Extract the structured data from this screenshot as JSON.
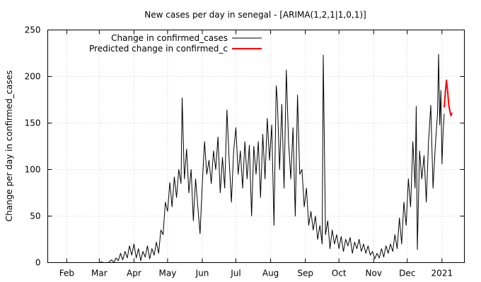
{
  "chart_data": {
    "type": "line",
    "title": "New cases per day in senegal -  [ARIMA(1,2,1|1,0,1)]",
    "xlabel": "",
    "ylabel": "Change per day in confirmed_cases",
    "ylim": [
      0,
      250
    ],
    "yticks": [
      0,
      50,
      100,
      150,
      200,
      250
    ],
    "xticks": [
      {
        "label": "Feb",
        "date": "2020-02-01"
      },
      {
        "label": "Mar",
        "date": "2020-03-01"
      },
      {
        "label": "Apr",
        "date": "2020-04-01"
      },
      {
        "label": "May",
        "date": "2020-05-01"
      },
      {
        "label": "Jun",
        "date": "2020-06-01"
      },
      {
        "label": "Jul",
        "date": "2020-07-01"
      },
      {
        "label": "Aug",
        "date": "2020-08-01"
      },
      {
        "label": "Sep",
        "date": "2020-09-01"
      },
      {
        "label": "Oct",
        "date": "2020-10-01"
      },
      {
        "label": "Nov",
        "date": "2020-11-01"
      },
      {
        "label": "Dec",
        "date": "2020-12-01"
      },
      {
        "label": "2021",
        "date": "2021-01-01"
      }
    ],
    "xlim": [
      "2020-01-15",
      "2021-01-21"
    ],
    "grid": true,
    "legend_position": "top-left",
    "series": [
      {
        "name": "Change in confirmed_cases",
        "color": "#000000",
        "points": [
          [
            "2020-03-02",
            1
          ],
          [
            "2020-03-05",
            0
          ],
          [
            "2020-03-09",
            0
          ],
          [
            "2020-03-12",
            3
          ],
          [
            "2020-03-14",
            0
          ],
          [
            "2020-03-16",
            5
          ],
          [
            "2020-03-18",
            2
          ],
          [
            "2020-03-20",
            10
          ],
          [
            "2020-03-22",
            3
          ],
          [
            "2020-03-24",
            12
          ],
          [
            "2020-03-26",
            5
          ],
          [
            "2020-03-28",
            18
          ],
          [
            "2020-03-30",
            8
          ],
          [
            "2020-04-01",
            20
          ],
          [
            "2020-04-03",
            5
          ],
          [
            "2020-04-05",
            15
          ],
          [
            "2020-04-07",
            2
          ],
          [
            "2020-04-09",
            12
          ],
          [
            "2020-04-11",
            6
          ],
          [
            "2020-04-13",
            18
          ],
          [
            "2020-04-15",
            4
          ],
          [
            "2020-04-17",
            15
          ],
          [
            "2020-04-19",
            8
          ],
          [
            "2020-04-21",
            22
          ],
          [
            "2020-04-23",
            10
          ],
          [
            "2020-04-25",
            35
          ],
          [
            "2020-04-27",
            30
          ],
          [
            "2020-04-29",
            65
          ],
          [
            "2020-05-01",
            55
          ],
          [
            "2020-05-03",
            86
          ],
          [
            "2020-05-05",
            60
          ],
          [
            "2020-05-07",
            92
          ],
          [
            "2020-05-09",
            70
          ],
          [
            "2020-05-11",
            100
          ],
          [
            "2020-05-13",
            85
          ],
          [
            "2020-05-14",
            177
          ],
          [
            "2020-05-16",
            90
          ],
          [
            "2020-05-18",
            122
          ],
          [
            "2020-05-20",
            75
          ],
          [
            "2020-05-22",
            100
          ],
          [
            "2020-05-24",
            45
          ],
          [
            "2020-05-26",
            90
          ],
          [
            "2020-05-28",
            60
          ],
          [
            "2020-05-30",
            31
          ],
          [
            "2020-06-01",
            85
          ],
          [
            "2020-06-03",
            130
          ],
          [
            "2020-06-05",
            95
          ],
          [
            "2020-06-07",
            110
          ],
          [
            "2020-06-09",
            85
          ],
          [
            "2020-06-11",
            120
          ],
          [
            "2020-06-13",
            100
          ],
          [
            "2020-06-15",
            135
          ],
          [
            "2020-06-17",
            75
          ],
          [
            "2020-06-19",
            113
          ],
          [
            "2020-06-21",
            80
          ],
          [
            "2020-06-23",
            164
          ],
          [
            "2020-06-25",
            110
          ],
          [
            "2020-06-27",
            65
          ],
          [
            "2020-06-29",
            120
          ],
          [
            "2020-07-01",
            145
          ],
          [
            "2020-07-03",
            95
          ],
          [
            "2020-07-05",
            120
          ],
          [
            "2020-07-07",
            80
          ],
          [
            "2020-07-09",
            130
          ],
          [
            "2020-07-11",
            90
          ],
          [
            "2020-07-13",
            126
          ],
          [
            "2020-07-15",
            50
          ],
          [
            "2020-07-17",
            125
          ],
          [
            "2020-07-19",
            95
          ],
          [
            "2020-07-21",
            130
          ],
          [
            "2020-07-23",
            70
          ],
          [
            "2020-07-25",
            138
          ],
          [
            "2020-07-27",
            90
          ],
          [
            "2020-07-29",
            155
          ],
          [
            "2020-07-31",
            110
          ],
          [
            "2020-08-02",
            148
          ],
          [
            "2020-08-04",
            40
          ],
          [
            "2020-08-06",
            190
          ],
          [
            "2020-08-07",
            175
          ],
          [
            "2020-08-09",
            100
          ],
          [
            "2020-08-11",
            170
          ],
          [
            "2020-08-13",
            80
          ],
          [
            "2020-08-15",
            207
          ],
          [
            "2020-08-17",
            130
          ],
          [
            "2020-08-19",
            90
          ],
          [
            "2020-08-21",
            145
          ],
          [
            "2020-08-23",
            50
          ],
          [
            "2020-08-25",
            180
          ],
          [
            "2020-08-27",
            95
          ],
          [
            "2020-08-29",
            100
          ],
          [
            "2020-08-31",
            60
          ],
          [
            "2020-09-02",
            80
          ],
          [
            "2020-09-04",
            40
          ],
          [
            "2020-09-06",
            55
          ],
          [
            "2020-09-08",
            35
          ],
          [
            "2020-09-10",
            50
          ],
          [
            "2020-09-12",
            25
          ],
          [
            "2020-09-14",
            40
          ],
          [
            "2020-09-16",
            20
          ],
          [
            "2020-09-17",
            223
          ],
          [
            "2020-09-19",
            30
          ],
          [
            "2020-09-21",
            45
          ],
          [
            "2020-09-23",
            15
          ],
          [
            "2020-09-25",
            35
          ],
          [
            "2020-09-27",
            20
          ],
          [
            "2020-09-29",
            30
          ],
          [
            "2020-10-01",
            15
          ],
          [
            "2020-10-03",
            28
          ],
          [
            "2020-10-05",
            12
          ],
          [
            "2020-10-07",
            25
          ],
          [
            "2020-10-09",
            18
          ],
          [
            "2020-10-11",
            27
          ],
          [
            "2020-10-13",
            10
          ],
          [
            "2020-10-15",
            22
          ],
          [
            "2020-10-17",
            15
          ],
          [
            "2020-10-19",
            25
          ],
          [
            "2020-10-21",
            12
          ],
          [
            "2020-10-23",
            20
          ],
          [
            "2020-10-25",
            10
          ],
          [
            "2020-10-27",
            18
          ],
          [
            "2020-10-29",
            8
          ],
          [
            "2020-10-31",
            12
          ],
          [
            "2020-11-02",
            4
          ],
          [
            "2020-11-04",
            10
          ],
          [
            "2020-11-06",
            5
          ],
          [
            "2020-11-08",
            15
          ],
          [
            "2020-11-10",
            6
          ],
          [
            "2020-11-12",
            18
          ],
          [
            "2020-11-14",
            10
          ],
          [
            "2020-11-16",
            20
          ],
          [
            "2020-11-18",
            12
          ],
          [
            "2020-11-20",
            30
          ],
          [
            "2020-11-22",
            15
          ],
          [
            "2020-11-24",
            48
          ],
          [
            "2020-11-26",
            20
          ],
          [
            "2020-11-28",
            65
          ],
          [
            "2020-11-30",
            40
          ],
          [
            "2020-12-02",
            90
          ],
          [
            "2020-12-04",
            60
          ],
          [
            "2020-12-06",
            130
          ],
          [
            "2020-12-08",
            80
          ],
          [
            "2020-12-09",
            168
          ],
          [
            "2020-12-10",
            14
          ],
          [
            "2020-12-12",
            120
          ],
          [
            "2020-12-14",
            90
          ],
          [
            "2020-12-16",
            115
          ],
          [
            "2020-12-18",
            65
          ],
          [
            "2020-12-20",
            130
          ],
          [
            "2020-12-22",
            169
          ],
          [
            "2020-12-24",
            80
          ],
          [
            "2020-12-26",
            124
          ],
          [
            "2020-12-28",
            160
          ],
          [
            "2020-12-29",
            224
          ],
          [
            "2020-12-30",
            148
          ],
          [
            "2020-12-31",
            185
          ],
          [
            "2021-01-01",
            106
          ],
          [
            "2021-01-02",
            140
          ],
          [
            "2021-01-03",
            160
          ]
        ]
      },
      {
        "name": "Predicted change in confirmed_c",
        "color": "#ff0000",
        "points": [
          [
            "2021-01-03",
            167
          ],
          [
            "2021-01-04",
            183
          ],
          [
            "2021-01-05",
            196
          ],
          [
            "2021-01-06",
            185
          ],
          [
            "2021-01-07",
            170
          ],
          [
            "2021-01-08",
            163
          ],
          [
            "2021-01-09",
            158
          ],
          [
            "2021-01-10",
            161
          ]
        ]
      }
    ]
  }
}
